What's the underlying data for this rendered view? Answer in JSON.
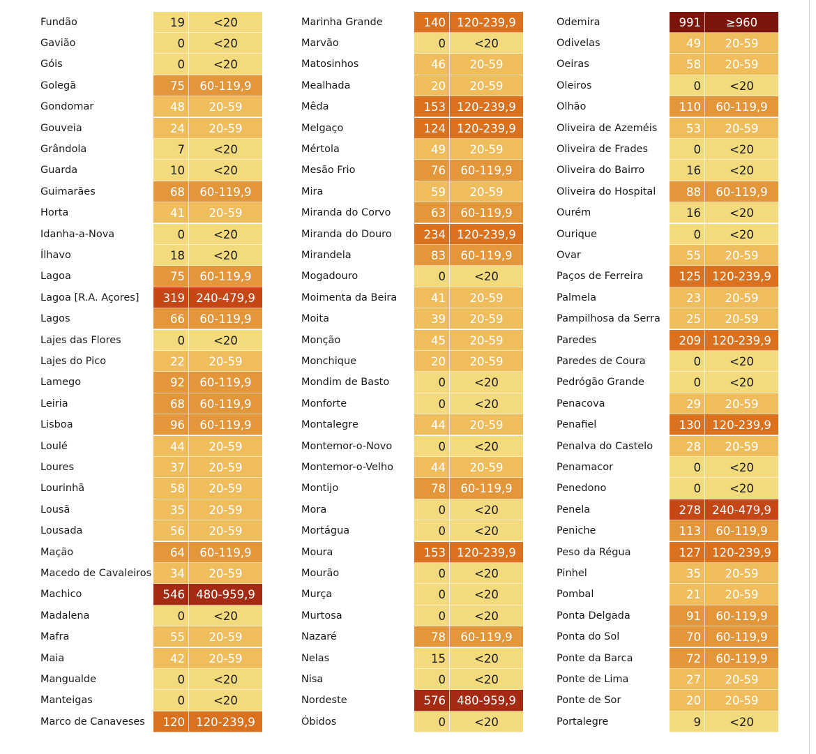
{
  "colors": {
    "lt20": "#f3da7d",
    "20-59": "#f0bd5c",
    "60-119,9": "#e3963a",
    "120-239,9": "#d9711e",
    "240-479,9": "#c64716",
    "480-959,9": "#a52a13",
    "ge960": "#7c1509"
  },
  "columns": [
    {
      "rows": [
        {
          "name": "Fundão",
          "value": "19",
          "range": "<20"
        },
        {
          "name": "Gavião",
          "value": "0",
          "range": "<20"
        },
        {
          "name": "Góis",
          "value": "0",
          "range": "<20"
        },
        {
          "name": "Golegã",
          "value": "75",
          "range": "60-119,9"
        },
        {
          "name": "Gondomar",
          "value": "48",
          "range": "20-59"
        },
        {
          "name": "Gouveia",
          "value": "24",
          "range": "20-59"
        },
        {
          "name": "Grândola",
          "value": "7",
          "range": "<20"
        },
        {
          "name": "Guarda",
          "value": "10",
          "range": "<20"
        },
        {
          "name": "Guimarães",
          "value": "68",
          "range": "60-119,9"
        },
        {
          "name": "Horta",
          "value": "41",
          "range": "20-59"
        },
        {
          "name": "Idanha-a-Nova",
          "value": "0",
          "range": "<20"
        },
        {
          "name": "Ílhavo",
          "value": "18",
          "range": "<20"
        },
        {
          "name": "Lagoa",
          "value": "75",
          "range": "60-119,9"
        },
        {
          "name": "Lagoa [R.A. Açores]",
          "value": "319",
          "range": "240-479,9"
        },
        {
          "name": "Lagos",
          "value": "66",
          "range": "60-119,9"
        },
        {
          "name": "Lajes das Flores",
          "value": "0",
          "range": "<20"
        },
        {
          "name": "Lajes do Pico",
          "value": "22",
          "range": "20-59"
        },
        {
          "name": "Lamego",
          "value": "92",
          "range": "60-119,9"
        },
        {
          "name": "Leiria",
          "value": "68",
          "range": "60-119,9"
        },
        {
          "name": "Lisboa",
          "value": "96",
          "range": "60-119,9"
        },
        {
          "name": "Loulé",
          "value": "44",
          "range": "20-59"
        },
        {
          "name": "Loures",
          "value": "37",
          "range": "20-59"
        },
        {
          "name": "Lourinhã",
          "value": "58",
          "range": "20-59"
        },
        {
          "name": "Lousã",
          "value": "35",
          "range": "20-59"
        },
        {
          "name": "Lousada",
          "value": "56",
          "range": "20-59"
        },
        {
          "name": "Mação",
          "value": "64",
          "range": "60-119,9"
        },
        {
          "name": "Macedo de Cavaleiros",
          "value": "34",
          "range": "20-59"
        },
        {
          "name": "Machico",
          "value": "546",
          "range": "480-959,9"
        },
        {
          "name": "Madalena",
          "value": "0",
          "range": "<20"
        },
        {
          "name": "Mafra",
          "value": "55",
          "range": "20-59"
        },
        {
          "name": "Maia",
          "value": "42",
          "range": "20-59"
        },
        {
          "name": "Mangualde",
          "value": "0",
          "range": "<20"
        },
        {
          "name": "Manteigas",
          "value": "0",
          "range": "<20"
        },
        {
          "name": "Marco de Canaveses",
          "value": "120",
          "range": "120-239,9"
        }
      ]
    },
    {
      "rows": [
        {
          "name": "Marinha Grande",
          "value": "140",
          "range": "120-239,9"
        },
        {
          "name": "Marvão",
          "value": "0",
          "range": "<20"
        },
        {
          "name": "Matosinhos",
          "value": "46",
          "range": "20-59"
        },
        {
          "name": "Mealhada",
          "value": "20",
          "range": "20-59"
        },
        {
          "name": "Mêda",
          "value": "153",
          "range": "120-239,9"
        },
        {
          "name": "Melgaço",
          "value": "124",
          "range": "120-239,9"
        },
        {
          "name": "Mértola",
          "value": "49",
          "range": "20-59"
        },
        {
          "name": "Mesão Frio",
          "value": "76",
          "range": "60-119,9"
        },
        {
          "name": "Mira",
          "value": "59",
          "range": "20-59"
        },
        {
          "name": "Miranda do Corvo",
          "value": "63",
          "range": "60-119,9"
        },
        {
          "name": "Miranda do Douro",
          "value": "234",
          "range": "120-239,9"
        },
        {
          "name": "Mirandela",
          "value": "83",
          "range": "60-119,9"
        },
        {
          "name": "Mogadouro",
          "value": "0",
          "range": "<20"
        },
        {
          "name": "Moimenta da Beira",
          "value": "41",
          "range": "20-59"
        },
        {
          "name": "Moita",
          "value": "39",
          "range": "20-59"
        },
        {
          "name": "Monção",
          "value": "45",
          "range": "20-59"
        },
        {
          "name": "Monchique",
          "value": "20",
          "range": "20-59"
        },
        {
          "name": "Mondim de Basto",
          "value": "0",
          "range": "<20"
        },
        {
          "name": "Monforte",
          "value": "0",
          "range": "<20"
        },
        {
          "name": "Montalegre",
          "value": "44",
          "range": "20-59"
        },
        {
          "name": "Montemor-o-Novo",
          "value": "0",
          "range": "<20"
        },
        {
          "name": "Montemor-o-Velho",
          "value": "44",
          "range": "20-59"
        },
        {
          "name": "Montijo",
          "value": "78",
          "range": "60-119,9"
        },
        {
          "name": "Mora",
          "value": "0",
          "range": "<20"
        },
        {
          "name": "Mortágua",
          "value": "0",
          "range": "<20"
        },
        {
          "name": "Moura",
          "value": "153",
          "range": "120-239,9"
        },
        {
          "name": "Mourão",
          "value": "0",
          "range": "<20"
        },
        {
          "name": "Murça",
          "value": "0",
          "range": "<20"
        },
        {
          "name": "Murtosa",
          "value": "0",
          "range": "<20"
        },
        {
          "name": "Nazaré",
          "value": "78",
          "range": "60-119,9"
        },
        {
          "name": "Nelas",
          "value": "15",
          "range": "<20"
        },
        {
          "name": "Nisa",
          "value": "0",
          "range": "<20"
        },
        {
          "name": "Nordeste",
          "value": "576",
          "range": "480-959,9"
        },
        {
          "name": "Óbidos",
          "value": "0",
          "range": "<20"
        }
      ]
    },
    {
      "rows": [
        {
          "name": "Odemira",
          "value": "991",
          "range": "≥960"
        },
        {
          "name": "Odivelas",
          "value": "49",
          "range": "20-59"
        },
        {
          "name": "Oeiras",
          "value": "58",
          "range": "20-59"
        },
        {
          "name": "Oleiros",
          "value": "0",
          "range": "<20"
        },
        {
          "name": "Olhão",
          "value": "110",
          "range": "60-119,9"
        },
        {
          "name": "Oliveira de Azeméis",
          "value": "53",
          "range": "20-59"
        },
        {
          "name": "Oliveira de Frades",
          "value": "0",
          "range": "<20"
        },
        {
          "name": "Oliveira do Bairro",
          "value": "16",
          "range": "<20"
        },
        {
          "name": "Oliveira do Hospital",
          "value": "88",
          "range": "60-119,9"
        },
        {
          "name": "Ourém",
          "value": "16",
          "range": "<20"
        },
        {
          "name": "Ourique",
          "value": "0",
          "range": "<20"
        },
        {
          "name": "Ovar",
          "value": "55",
          "range": "20-59"
        },
        {
          "name": "Paços de Ferreira",
          "value": "125",
          "range": "120-239,9"
        },
        {
          "name": "Palmela",
          "value": "23",
          "range": "20-59"
        },
        {
          "name": "Pampilhosa da Serra",
          "value": "25",
          "range": "20-59"
        },
        {
          "name": "Paredes",
          "value": "209",
          "range": "120-239,9"
        },
        {
          "name": "Paredes de Coura",
          "value": "0",
          "range": "<20"
        },
        {
          "name": "Pedrógão Grande",
          "value": "0",
          "range": "<20"
        },
        {
          "name": "Penacova",
          "value": "29",
          "range": "20-59"
        },
        {
          "name": "Penafiel",
          "value": "130",
          "range": "120-239,9"
        },
        {
          "name": "Penalva do Castelo",
          "value": "28",
          "range": "20-59"
        },
        {
          "name": "Penamacor",
          "value": "0",
          "range": "<20"
        },
        {
          "name": "Penedono",
          "value": "0",
          "range": "<20"
        },
        {
          "name": "Penela",
          "value": "278",
          "range": "240-479,9"
        },
        {
          "name": "Peniche",
          "value": "113",
          "range": "60-119,9"
        },
        {
          "name": "Peso da Régua",
          "value": "127",
          "range": "120-239,9"
        },
        {
          "name": "Pinhel",
          "value": "35",
          "range": "20-59"
        },
        {
          "name": "Pombal",
          "value": "21",
          "range": "20-59"
        },
        {
          "name": "Ponta Delgada",
          "value": "91",
          "range": "60-119,9"
        },
        {
          "name": "Ponta do Sol",
          "value": "70",
          "range": "60-119,9"
        },
        {
          "name": "Ponte da Barca",
          "value": "72",
          "range": "60-119,9"
        },
        {
          "name": "Ponte de Lima",
          "value": "27",
          "range": "20-59"
        },
        {
          "name": "Ponte de Sor",
          "value": "20",
          "range": "20-59"
        },
        {
          "name": "Portalegre",
          "value": "9",
          "range": "<20"
        }
      ]
    }
  ]
}
